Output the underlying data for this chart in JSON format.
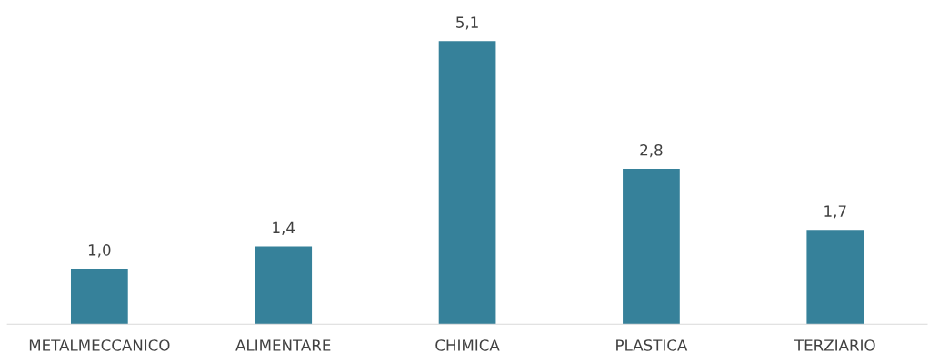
{
  "chart_data": {
    "type": "bar",
    "categories": [
      "METALMECCANICO",
      "ALIMENTARE",
      "CHIMICA",
      "PLASTICA",
      "TERZIARIO"
    ],
    "values": [
      1.0,
      1.4,
      5.1,
      2.8,
      1.7
    ],
    "value_labels": [
      "1,0",
      "1,4",
      "5,1",
      "2,8",
      "1,7"
    ],
    "color": "#36819a"
  }
}
